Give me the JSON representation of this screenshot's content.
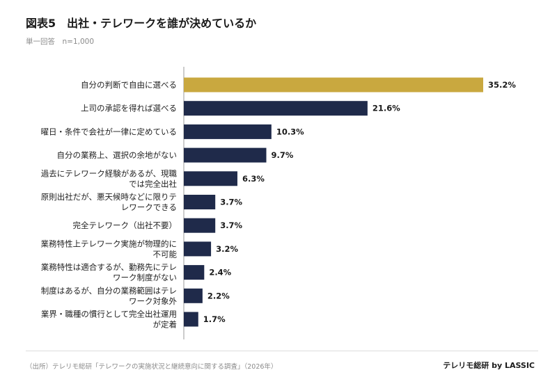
{
  "title": "図表5　出社・テレワークを誰が決めているか",
  "subtitle": "単一回答　n=1,000",
  "footer": {
    "source": "（出所）テレリモ総研「テレワークの実施状況と継続意向に関する調査」（2026年）",
    "brand": "テレリモ総研 by LASSIC"
  },
  "colors": {
    "highlight": "#C9A83F",
    "bar": "#1F2A4A",
    "axis": "#999999"
  },
  "chart_data": {
    "type": "bar",
    "orientation": "horizontal",
    "categories": [
      [
        "自分の判断で自由に選べる"
      ],
      [
        "上司の承認を得れば選べる"
      ],
      [
        "曜日・条件で会社が一律に定めている"
      ],
      [
        "自分の業務上、選択の余地がない"
      ],
      [
        "過去にテレワーク経験があるが、現職",
        "では完全出社"
      ],
      [
        "原則出社だが、悪天候時などに限りテ",
        "レワークできる"
      ],
      [
        "完全テレワーク（出社不要）"
      ],
      [
        "業務特性上テレワーク実施が物理的に",
        "不可能"
      ],
      [
        "業務特性は適合するが、勤務先にテレ",
        "ワーク制度がない"
      ],
      [
        "制度はあるが、自分の業務範囲はテレ",
        "ワーク対象外"
      ],
      [
        "業界・職種の慣行として完全出社運用",
        "が定着"
      ]
    ],
    "values": [
      35.2,
      21.6,
      10.3,
      9.7,
      6.3,
      3.7,
      3.7,
      3.2,
      2.4,
      2.2,
      1.7
    ],
    "value_labels": [
      "35.2%",
      "21.6%",
      "10.3%",
      "9.7%",
      "6.3%",
      "3.7%",
      "3.7%",
      "3.2%",
      "2.4%",
      "2.2%",
      "1.7%"
    ],
    "highlight_index": 0,
    "xlim": [
      0,
      35.2
    ],
    "grid": false,
    "legend": false
  }
}
